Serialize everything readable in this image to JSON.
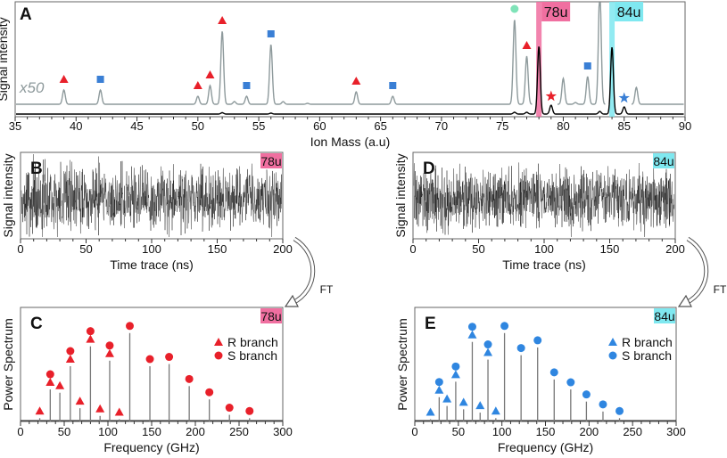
{
  "chart_data": [
    {
      "panel": "A",
      "type": "line",
      "xlabel": "Ion Mass (a.u)",
      "ylabel": "Signal intensity",
      "xlim": [
        35,
        90
      ],
      "xticks": [
        35,
        40,
        45,
        50,
        55,
        60,
        65,
        70,
        75,
        80,
        85,
        90
      ],
      "scale_label": "x50",
      "highlights": [
        {
          "mass": 78,
          "label": "78u",
          "color": "#f06fa0"
        },
        {
          "mass": 84,
          "label": "84u",
          "color": "#7fe8f0"
        }
      ],
      "series": [
        {
          "style": "gray x50",
          "color": "#8e9a9c",
          "peaks": [
            [
              39,
              16
            ],
            [
              42,
              16
            ],
            [
              50,
              9
            ],
            [
              51,
              21
            ],
            [
              52,
              82
            ],
            [
              53,
              3
            ],
            [
              54,
              9
            ],
            [
              56,
              67
            ],
            [
              57,
              3
            ],
            [
              59,
              1
            ],
            [
              63,
              14
            ],
            [
              66,
              9
            ],
            [
              76,
              95
            ],
            [
              77,
              54
            ],
            [
              80,
              29
            ],
            [
              81,
              2
            ],
            [
              82,
              31
            ],
            [
              83,
              130
            ],
            [
              86,
              19
            ]
          ]
        },
        {
          "style": "black raw",
          "color": "#000000",
          "peaks": [
            [
              52,
              1.5
            ],
            [
              56,
              1
            ],
            [
              76,
              2
            ],
            [
              77,
              2
            ],
            [
              78,
              76
            ],
            [
              79,
              10
            ],
            [
              83,
              3
            ],
            [
              84,
              75
            ],
            [
              85,
              8
            ]
          ]
        }
      ],
      "markers": [
        {
          "mass": 39,
          "shape": "triangle",
          "color": "#e8202a"
        },
        {
          "mass": 42,
          "shape": "square",
          "color": "#3a7fd5"
        },
        {
          "mass": 50,
          "shape": "triangle",
          "color": "#e8202a"
        },
        {
          "mass": 51,
          "shape": "triangle",
          "color": "#e8202a"
        },
        {
          "mass": 52,
          "shape": "triangle",
          "color": "#e8202a"
        },
        {
          "mass": 54,
          "shape": "square",
          "color": "#3a7fd5"
        },
        {
          "mass": 56,
          "shape": "square",
          "color": "#3a7fd5"
        },
        {
          "mass": 63,
          "shape": "triangle",
          "color": "#e8202a"
        },
        {
          "mass": 66,
          "shape": "square",
          "color": "#3a7fd5"
        },
        {
          "mass": 76,
          "shape": "circle",
          "color": "#7fe3b8"
        },
        {
          "mass": 77,
          "shape": "triangle",
          "color": "#e8202a"
        },
        {
          "mass": 79,
          "shape": "star",
          "color": "#e8202a"
        },
        {
          "mass": 82,
          "shape": "square",
          "color": "#3a7fd5"
        },
        {
          "mass": 85,
          "shape": "star",
          "color": "#3a7fd5"
        }
      ]
    },
    {
      "panel": "B",
      "type": "line",
      "xlabel": "Time trace (ns)",
      "ylabel": "Signal intensity",
      "xlim": [
        0,
        200
      ],
      "xticks": [
        0,
        50,
        100,
        150,
        200
      ],
      "tag": "78u",
      "tag_color": "#f06fa0",
      "signal": "noise"
    },
    {
      "panel": "D",
      "type": "line",
      "xlabel": "Time trace (ns)",
      "ylabel": "Signal intensity",
      "xlim": [
        0,
        200
      ],
      "xticks": [
        0,
        50,
        100,
        150,
        200
      ],
      "tag": "84u",
      "tag_color": "#7fe8f0",
      "signal": "noise"
    },
    {
      "panel": "C",
      "type": "bar",
      "xlabel": "Frequency (GHz)",
      "ylabel": "Power Spectrum",
      "xlim": [
        0,
        300
      ],
      "xticks": [
        0,
        50,
        100,
        150,
        200,
        250,
        300
      ],
      "tag": "78u",
      "tag_color": "#f06fa0",
      "marker_color": "#e8202a",
      "legend": [
        "R branch",
        "S branch"
      ],
      "legend_position": "right",
      "R": [
        [
          22,
          0.03
        ],
        [
          34,
          0.29
        ],
        [
          45,
          0.26
        ],
        [
          57,
          0.5
        ],
        [
          68,
          0.12
        ],
        [
          80,
          0.68
        ],
        [
          91,
          0.05
        ],
        [
          102,
          0.55
        ],
        [
          113,
          0.02
        ]
      ],
      "S": [
        [
          34,
          0.29
        ],
        [
          57,
          0.5
        ],
        [
          80,
          0.68
        ],
        [
          102,
          0.55
        ],
        [
          125,
          0.8
        ],
        [
          148,
          0.5
        ],
        [
          170,
          0.52
        ],
        [
          193,
          0.32
        ],
        [
          216,
          0.2
        ],
        [
          239,
          0.06
        ],
        [
          262,
          0.03
        ]
      ]
    },
    {
      "panel": "E",
      "type": "bar",
      "xlabel": "Frequency (GHz)",
      "ylabel": "Power Spectrum",
      "xlim": [
        0,
        300
      ],
      "xticks": [
        0,
        50,
        100,
        150,
        200,
        250,
        300
      ],
      "tag": "84u",
      "tag_color": "#7fe8f0",
      "marker_color": "#2f86e0",
      "legend": [
        "R branch",
        "S branch"
      ],
      "legend_position": "right",
      "R": [
        [
          18,
          0.02
        ],
        [
          28,
          0.22
        ],
        [
          37,
          0.14
        ],
        [
          47,
          0.36
        ],
        [
          56,
          0.11
        ],
        [
          66,
          0.72
        ],
        [
          75,
          0.08
        ],
        [
          84,
          0.56
        ],
        [
          93,
          0.03
        ]
      ],
      "S": [
        [
          28,
          0.22
        ],
        [
          47,
          0.36
        ],
        [
          66,
          0.72
        ],
        [
          84,
          0.56
        ],
        [
          103,
          0.8
        ],
        [
          122,
          0.6
        ],
        [
          141,
          0.67
        ],
        [
          160,
          0.38
        ],
        [
          179,
          0.29
        ],
        [
          197,
          0.18
        ],
        [
          216,
          0.09
        ],
        [
          235,
          0.03
        ]
      ]
    }
  ],
  "arrows": {
    "label": "FT"
  }
}
